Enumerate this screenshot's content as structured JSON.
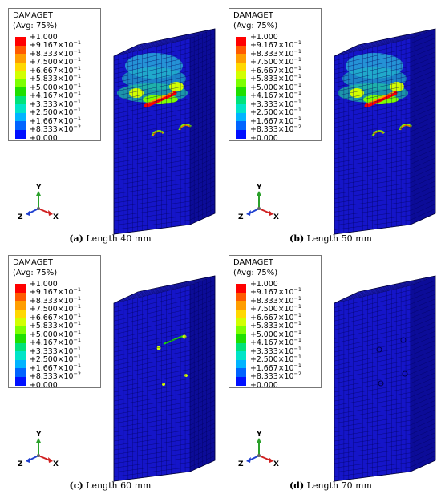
{
  "legend": {
    "title_line1": "DAMAGET",
    "title_line2": "(Avg: 75%)",
    "entries": [
      {
        "mantissa": "+1.000",
        "exp": ""
      },
      {
        "mantissa": "+9.167×10",
        "exp": "−1"
      },
      {
        "mantissa": "+8.333×10",
        "exp": "−1"
      },
      {
        "mantissa": "+7.500×10",
        "exp": "−1"
      },
      {
        "mantissa": "+6.667×10",
        "exp": "−1"
      },
      {
        "mantissa": "+5.833×10",
        "exp": "−1"
      },
      {
        "mantissa": "+5.000×10",
        "exp": "−1"
      },
      {
        "mantissa": "+4.167×10",
        "exp": "−1"
      },
      {
        "mantissa": "+3.333×10",
        "exp": "−1"
      },
      {
        "mantissa": "+2.500×10",
        "exp": "−1"
      },
      {
        "mantissa": "+1.667×10",
        "exp": "−1"
      },
      {
        "mantissa": "+8.333×10",
        "exp": "−2"
      },
      {
        "mantissa": "+0.000",
        "exp": ""
      }
    ],
    "colors": [
      "#ff0000",
      "#ff5a00",
      "#ff9e00",
      "#ffd800",
      "#d2ff00",
      "#7dff00",
      "#1fdf00",
      "#00e27a",
      "#00e4c8",
      "#00b4ff",
      "#0064ff",
      "#0010ff"
    ]
  },
  "triad": {
    "y": "Y",
    "x": "X",
    "z": "Z"
  },
  "colors": {
    "mesh_front": "#1515c9",
    "mesh_side": "#0c0c98",
    "mesh_top": "#2a2ae0",
    "mesh_line": "#00005a"
  },
  "panels": [
    {
      "id": "a",
      "letter": "(a)",
      "caption": "Length 40 mm",
      "damage": "high"
    },
    {
      "id": "b",
      "letter": "(b)",
      "caption": "Length 50 mm",
      "damage": "high"
    },
    {
      "id": "c",
      "letter": "(c)",
      "caption": "Length 60 mm",
      "damage": "low"
    },
    {
      "id": "d",
      "letter": "(d)",
      "caption": "Length 70 mm",
      "damage": "none"
    }
  ]
}
